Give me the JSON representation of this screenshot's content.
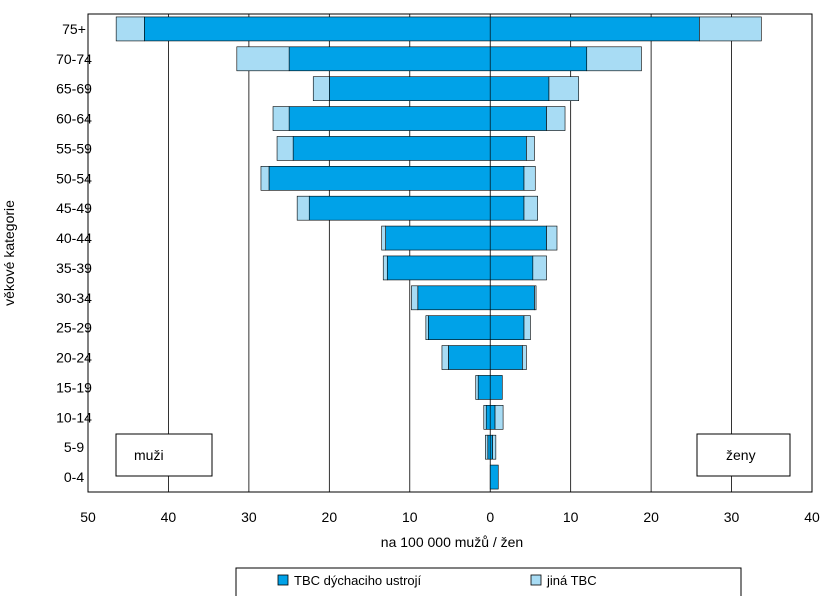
{
  "chart_data": {
    "type": "bar",
    "orientation": "horizontal",
    "layout": "population-pyramid",
    "categories": [
      "75+",
      "70-74",
      "65-69",
      "60-64",
      "55-59",
      "50-54",
      "45-49",
      "40-44",
      "35-39",
      "30-34",
      "25-29",
      "20-24",
      "15-19",
      "10-14",
      "5-9",
      "0-4"
    ],
    "ylabel": "věkové kategorie",
    "xlabel": "na 100 000 mužů / žen",
    "xlim": [
      -50,
      40
    ],
    "xticks": [
      -50,
      -40,
      -30,
      -20,
      -10,
      0,
      10,
      20,
      30,
      40
    ],
    "xtick_labels": [
      "50",
      "40",
      "30",
      "20",
      "10",
      "0",
      "10",
      "20",
      "30",
      "40"
    ],
    "grid": "vertical",
    "legend_position": "bottom",
    "panel_labels": {
      "left": "muži",
      "right": "ženy"
    },
    "series": [
      {
        "name": "TBC dýchaciho ustrojí",
        "color": "#00a2e8",
        "muzi": [
          43,
          25,
          20,
          25,
          24.5,
          27.5,
          22.5,
          13,
          12.8,
          9,
          7.7,
          5.2,
          1.5,
          0.5,
          0.3,
          0
        ],
        "zeny": [
          26,
          12,
          7.3,
          7,
          4.5,
          4.2,
          4.2,
          7,
          5.3,
          5.5,
          4.2,
          4,
          1.5,
          0.6,
          0.3,
          1
        ]
      },
      {
        "name": "jiná TBC",
        "color": "#a8dcf4",
        "muzi": [
          3.5,
          6.5,
          2,
          2,
          2,
          1,
          1.5,
          0.5,
          0.5,
          0.8,
          0.3,
          0.8,
          0.3,
          0.3,
          0.3,
          0
        ],
        "zeny": [
          7.7,
          6.8,
          3.7,
          2.3,
          1,
          1.4,
          1.7,
          1.3,
          1.7,
          0.2,
          0.8,
          0.5,
          0,
          1,
          0.4,
          0
        ]
      }
    ]
  }
}
